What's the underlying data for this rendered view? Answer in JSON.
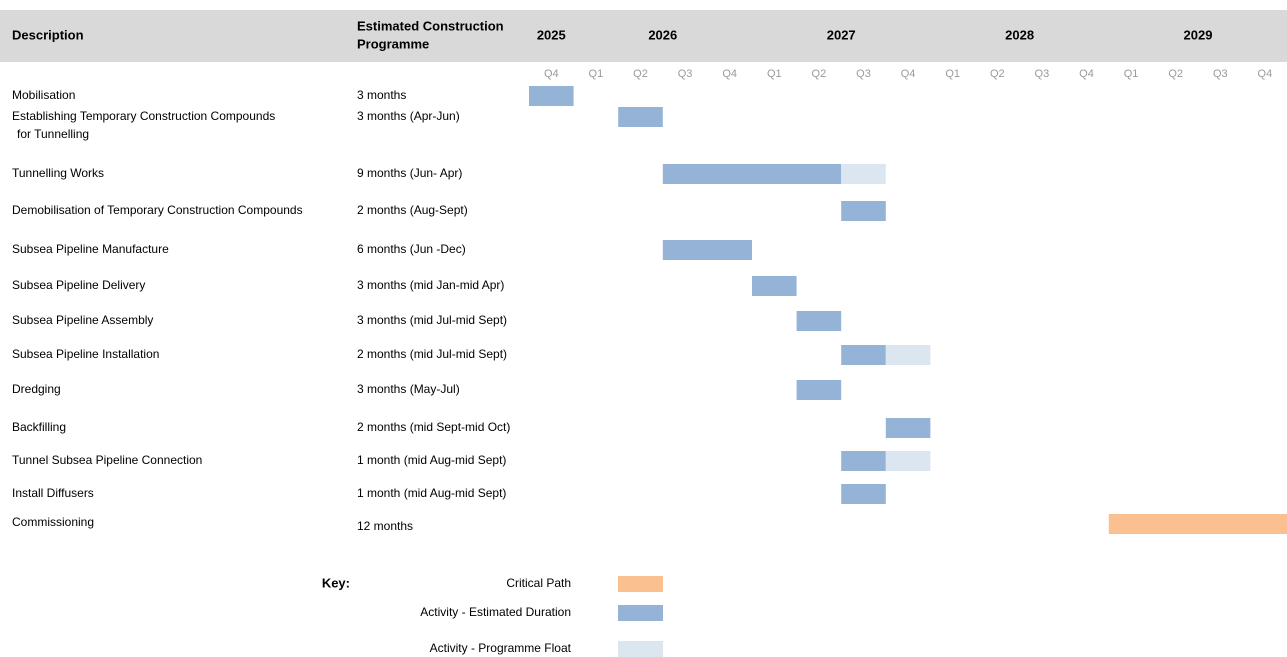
{
  "header": {
    "description": "Description",
    "programme": [
      "Estimated Construction",
      "Programme"
    ],
    "years": [
      "2025",
      "2026",
      "2027",
      "2028",
      "2029"
    ]
  },
  "quarters": [
    "Q4",
    "Q1",
    "Q2",
    "Q3",
    "Q4",
    "Q1",
    "Q2",
    "Q3",
    "Q4",
    "Q1",
    "Q2",
    "Q3",
    "Q4",
    "Q1",
    "Q2",
    "Q3",
    "Q4"
  ],
  "colors": {
    "critical": "#fac090",
    "estimated": "#95b3d7",
    "float": "#dce6f1"
  },
  "rows": [
    {
      "description": "Mobilisation",
      "duration": "3 months",
      "estimated": [
        0,
        1
      ]
    },
    {
      "description": [
        "Establishing Temporary Construction Compounds",
        "for Tunnelling"
      ],
      "duration": "3 months (Apr-Jun)",
      "estimated": [
        2,
        3
      ]
    },
    {
      "description": "Tunnelling Works",
      "duration": "9 months (Jun- Apr)",
      "estimated": [
        3,
        7
      ],
      "float": [
        7,
        8
      ]
    },
    {
      "description": "Demobilisation of Temporary Construction Compounds",
      "duration": "2 months (Aug-Sept)",
      "estimated": [
        7,
        8
      ]
    },
    {
      "description": "Subsea Pipeline Manufacture",
      "duration": "6 months (Jun -Dec)",
      "estimated": [
        3,
        5
      ]
    },
    {
      "description": "Subsea Pipeline Delivery",
      "duration": "3 months (mid Jan-mid Apr)",
      "estimated": [
        5,
        6
      ]
    },
    {
      "description": "Subsea Pipeline Assembly",
      "duration": "3 months (mid Jul-mid Sept)",
      "estimated": [
        6,
        7
      ]
    },
    {
      "description": "Subsea Pipeline Installation",
      "duration": "2 months (mid Jul-mid Sept)",
      "estimated": [
        7,
        8
      ],
      "float": [
        8,
        9
      ]
    },
    {
      "description": "Dredging",
      "duration": "3 months (May-Jul)",
      "estimated": [
        6,
        7
      ]
    },
    {
      "description": "Backfilling",
      "duration": "2 months (mid Sept-mid Oct)",
      "estimated": [
        8,
        9
      ]
    },
    {
      "description": "Tunnel Subsea Pipeline Connection",
      "duration": "1 month (mid Aug-mid Sept)",
      "estimated": [
        7,
        8
      ],
      "float": [
        8,
        9
      ]
    },
    {
      "description": "Install Diffusers",
      "duration": "1 month (mid Aug-mid Sept)",
      "estimated": [
        7,
        8
      ]
    },
    {
      "description": "Commissioning",
      "duration": "12 months",
      "critical": [
        13,
        17
      ]
    }
  ],
  "key": {
    "label": "Key:",
    "items": [
      "Critical Path",
      "Activity - Estimated Duration",
      "Activity - Programme Float"
    ]
  }
}
